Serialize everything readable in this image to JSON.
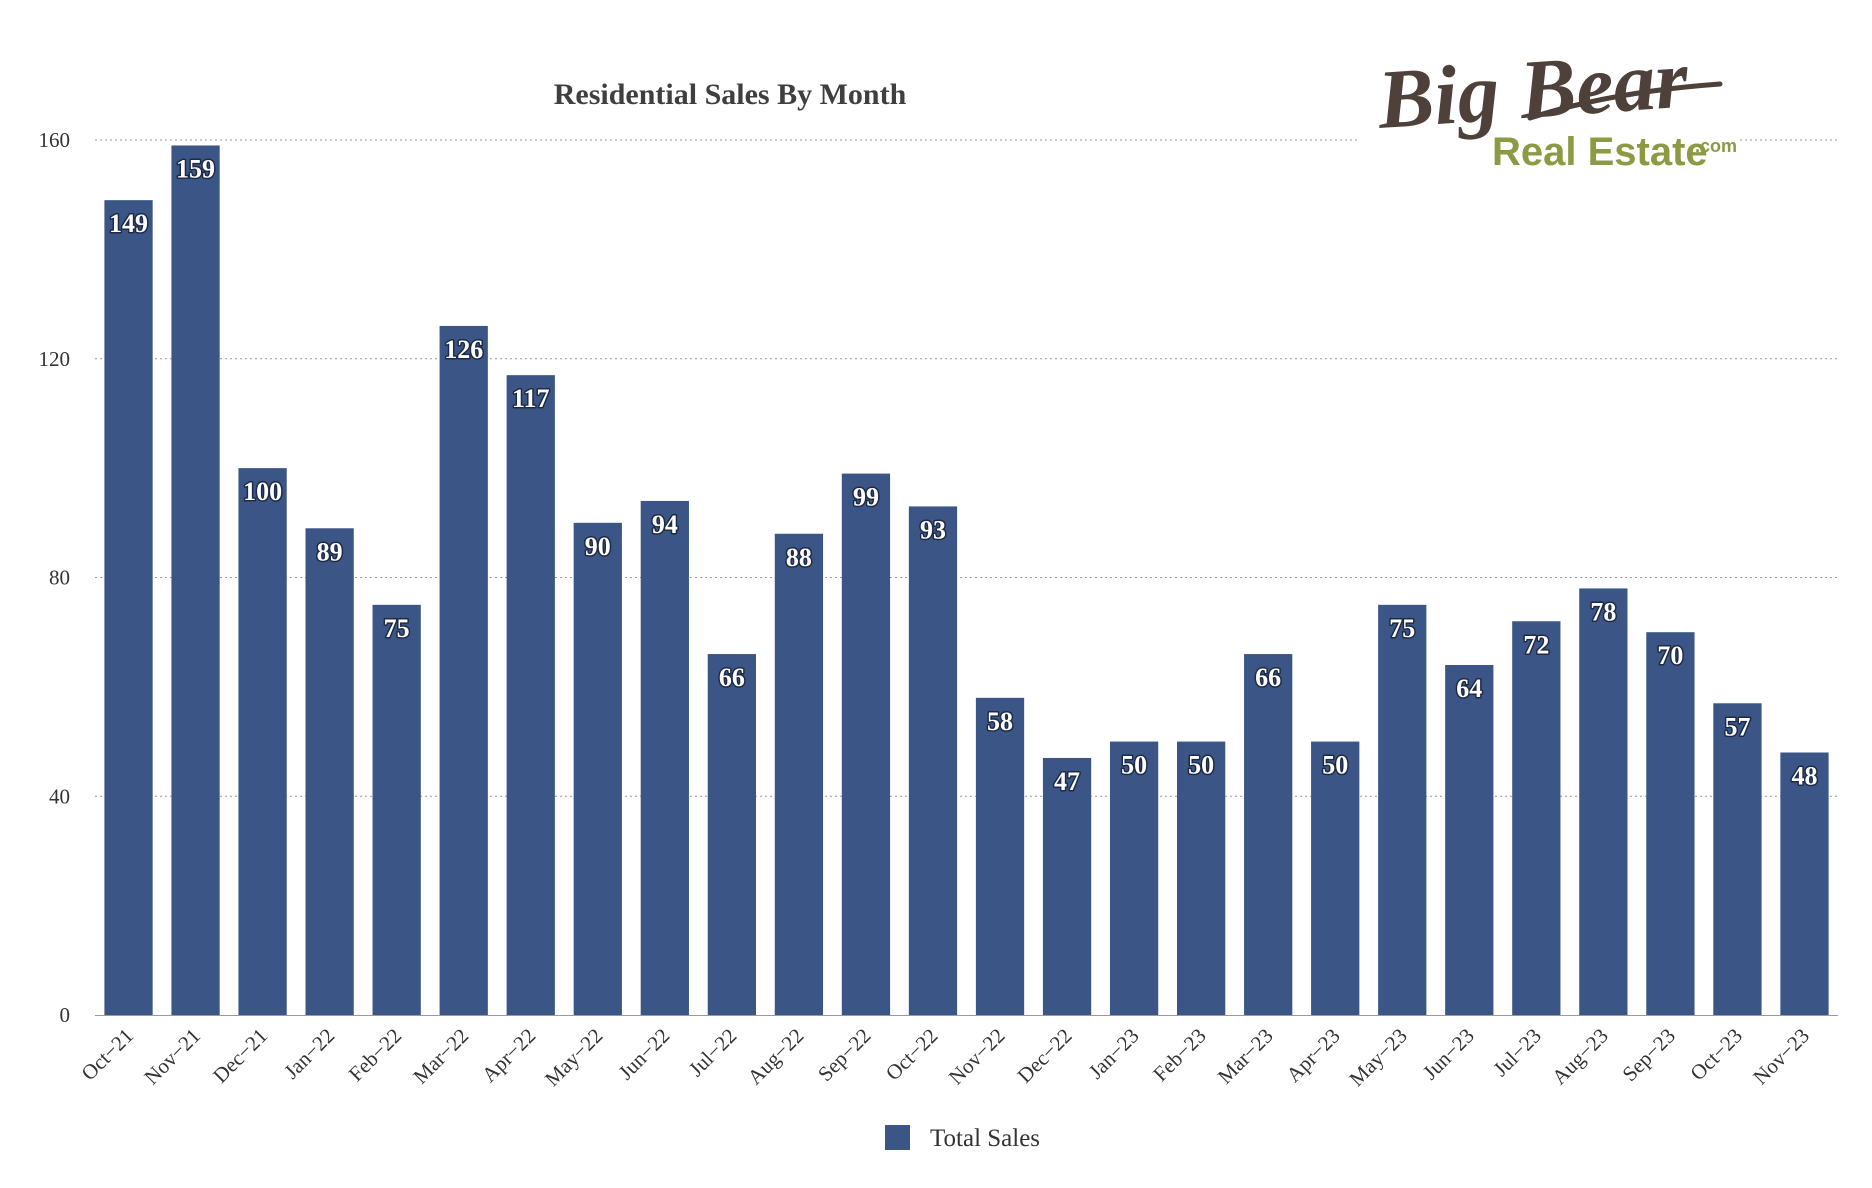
{
  "logo": {
    "script_text": "Big Bear",
    "sub_text": "Real Estate",
    "suffix_text": ".com"
  },
  "colors": {
    "bar": "#3b5686",
    "label_stroke": "#1d2a45",
    "logo_brown": "#4e403a",
    "logo_green": "#8d9a43"
  },
  "chart_data": {
    "type": "bar",
    "title": "Residential Sales By Month",
    "xlabel": "",
    "ylabel": "",
    "ylim": [
      0,
      160
    ],
    "yticks": [
      0,
      40,
      80,
      120,
      160
    ],
    "grid": true,
    "legend_position": "bottom-center",
    "categories": [
      "Oct−21",
      "Nov−21",
      "Dec−21",
      "Jan−22",
      "Feb−22",
      "Mar−22",
      "Apr−22",
      "May−22",
      "Jun−22",
      "Jul−22",
      "Aug−22",
      "Sep−22",
      "Oct−22",
      "Nov−22",
      "Dec−22",
      "Jan−23",
      "Feb−23",
      "Mar−23",
      "Apr−23",
      "May−23",
      "Jun−23",
      "Jul−23",
      "Aug−23",
      "Sep−23",
      "Oct−23",
      "Nov−23"
    ],
    "series": [
      {
        "name": "Total Sales",
        "color": "#3b5686",
        "values": [
          149,
          159,
          100,
          89,
          75,
          126,
          117,
          90,
          94,
          66,
          88,
          99,
          93,
          58,
          47,
          50,
          50,
          66,
          50,
          75,
          64,
          72,
          78,
          70,
          57,
          48
        ]
      }
    ]
  }
}
